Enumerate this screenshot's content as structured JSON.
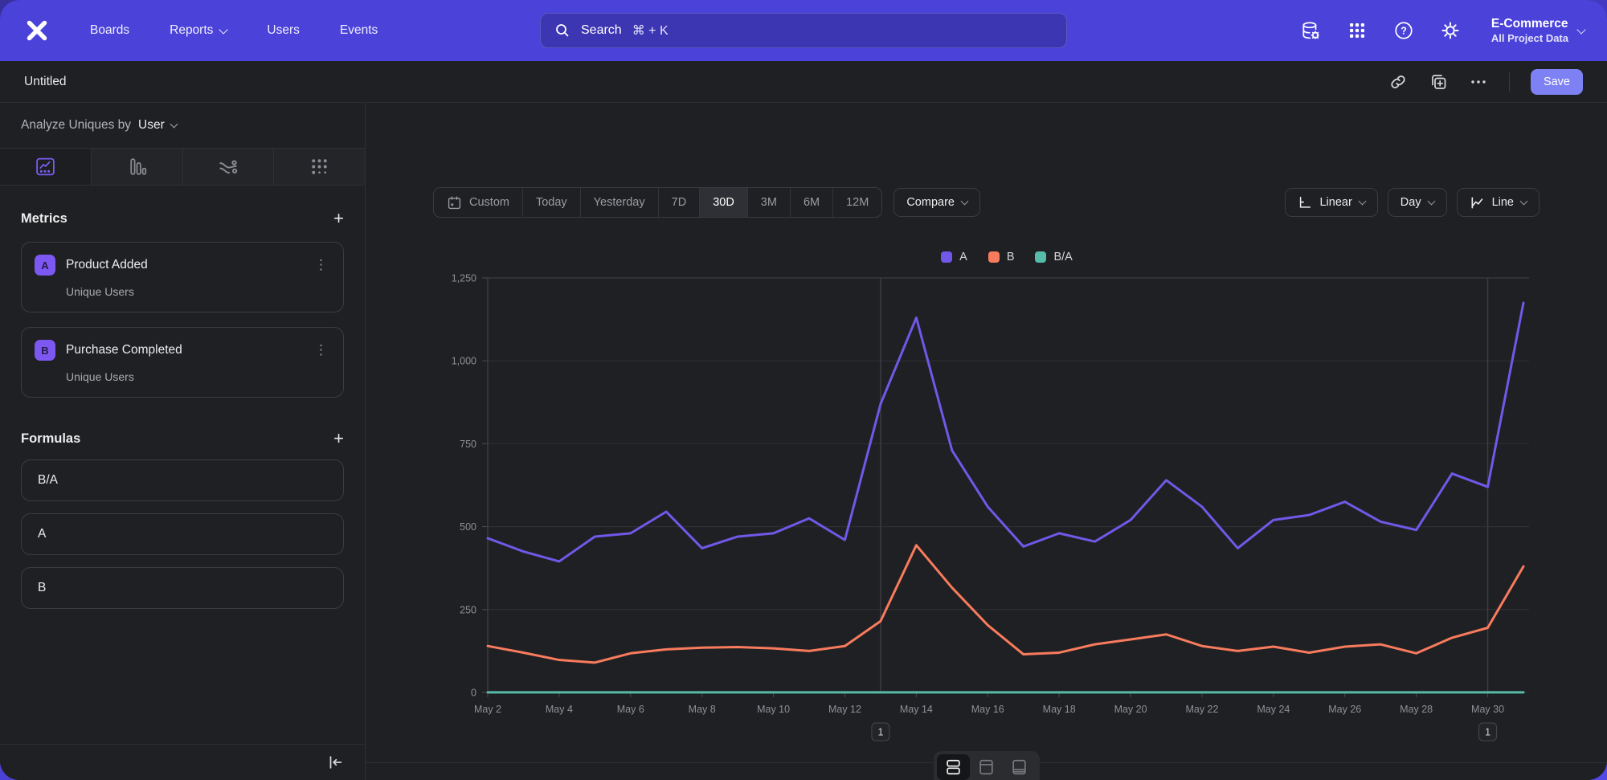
{
  "nav": {
    "items": [
      {
        "label": "Boards"
      },
      {
        "label": "Reports"
      },
      {
        "label": "Users"
      },
      {
        "label": "Events"
      }
    ],
    "search": {
      "placeholder": "Search",
      "shortcut": "⌘ + K"
    },
    "project_name": "E-Commerce",
    "project_scope": "All Project Data"
  },
  "report_header": {
    "title": "Untitled",
    "save_label": "Save"
  },
  "sidebar": {
    "analyze_label": "Analyze Uniques by",
    "analyze_value": "User",
    "metrics": {
      "title": "Metrics",
      "add_label": "+",
      "items": [
        {
          "badge": "A",
          "name": "Product Added",
          "measure": "Unique Users"
        },
        {
          "badge": "B",
          "name": "Purchase Completed",
          "measure": "Unique Users"
        }
      ]
    },
    "formulas": {
      "title": "Formulas",
      "add_label": "+",
      "items": [
        {
          "name": "B/A"
        },
        {
          "name": "A"
        },
        {
          "name": "B"
        }
      ]
    }
  },
  "toolbar": {
    "date_ranges": [
      "Custom",
      "Today",
      "Yesterday",
      "7D",
      "30D",
      "3M",
      "6M",
      "12M"
    ],
    "selected_range": "30D",
    "compare_label": "Compare",
    "scale_label": "Linear",
    "interval_label": "Day",
    "chart_type_label": "Line"
  },
  "chart_data": {
    "type": "line",
    "title": "",
    "xlabel": "",
    "ylabel": "",
    "ylim": [
      0,
      1250
    ],
    "grid": true,
    "legend_position": "top-center",
    "x_tick_every": 2,
    "categories": [
      "May 2",
      "May 3",
      "May 4",
      "May 5",
      "May 6",
      "May 7",
      "May 8",
      "May 9",
      "May 10",
      "May 11",
      "May 12",
      "May 13",
      "May 14",
      "May 15",
      "May 16",
      "May 17",
      "May 18",
      "May 19",
      "May 20",
      "May 21",
      "May 22",
      "May 23",
      "May 24",
      "May 25",
      "May 26",
      "May 27",
      "May 28",
      "May 29",
      "May 30",
      "May 31"
    ],
    "yticks": [
      {
        "value": 0,
        "label": "0"
      },
      {
        "value": 250,
        "label": "250"
      },
      {
        "value": 500,
        "label": "500"
      },
      {
        "value": 750,
        "label": "750"
      },
      {
        "value": 1000,
        "label": "1,000"
      },
      {
        "value": 1250,
        "label": "1,250"
      }
    ],
    "series": [
      {
        "name": "A",
        "color": "#7158e8",
        "values": [
          465,
          425,
          395,
          470,
          480,
          545,
          435,
          470,
          480,
          525,
          460,
          870,
          1130,
          730,
          560,
          440,
          480,
          455,
          520,
          640,
          560,
          435,
          520,
          535,
          575,
          515,
          490,
          660,
          620,
          1175
        ]
      },
      {
        "name": "B",
        "color": "#f87b5d",
        "values": [
          140,
          120,
          98,
          90,
          118,
          130,
          135,
          137,
          133,
          125,
          140,
          215,
          444,
          316,
          203,
          115,
          120,
          145,
          160,
          175,
          140,
          125,
          138,
          120,
          138,
          145,
          118,
          165,
          195,
          380
        ]
      },
      {
        "name": "B/A",
        "color": "#57bba9",
        "values": [
          0.3,
          0.28,
          0.25,
          0.19,
          0.25,
          0.24,
          0.31,
          0.29,
          0.28,
          0.24,
          0.3,
          0.25,
          0.39,
          0.43,
          0.36,
          0.26,
          0.25,
          0.32,
          0.31,
          0.27,
          0.25,
          0.29,
          0.27,
          0.22,
          0.24,
          0.28,
          0.24,
          0.25,
          0.31,
          0.32
        ]
      }
    ],
    "annotations": [
      {
        "x": "May 13",
        "badge": "1"
      },
      {
        "x": "May 30",
        "badge": "1"
      }
    ]
  }
}
